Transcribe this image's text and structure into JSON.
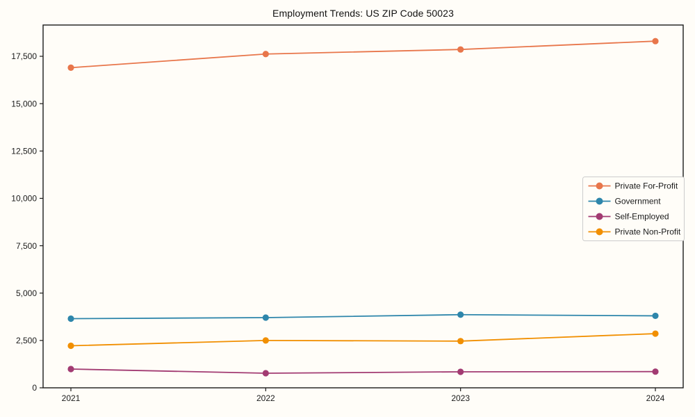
{
  "chart_data": {
    "type": "line",
    "title": "Employment Trends: US ZIP Code 50023",
    "xlabel": "",
    "ylabel": "",
    "categories": [
      "2021",
      "2022",
      "2023",
      "2024"
    ],
    "series": [
      {
        "name": "Private For-Profit",
        "color": "#e8764b",
        "values": [
          16900,
          17620,
          17860,
          18300
        ]
      },
      {
        "name": "Government",
        "color": "#2e86ab",
        "values": [
          3650,
          3705,
          3860,
          3800
        ]
      },
      {
        "name": "Self-Employed",
        "color": "#a23b72",
        "values": [
          990,
          770,
          845,
          855
        ]
      },
      {
        "name": "Private Non-Profit",
        "color": "#f18f01",
        "values": [
          2220,
          2500,
          2465,
          2860
        ]
      }
    ],
    "yticks": [
      0,
      2500,
      5000,
      7500,
      10000,
      12500,
      15000,
      17500
    ],
    "ytick_labels": [
      "0",
      "2,500",
      "5,000",
      "7,500",
      "10,000",
      "12,500",
      "15,000",
      "17,500"
    ],
    "ylim": [
      0,
      19150
    ],
    "grid": false,
    "marker": "circle",
    "legend_position": "center right",
    "colors": {
      "spine": "#1a1a1a",
      "tick_text": "#1a1a1a",
      "legend_border": "#cccccc",
      "background": "#fffdf8"
    }
  }
}
